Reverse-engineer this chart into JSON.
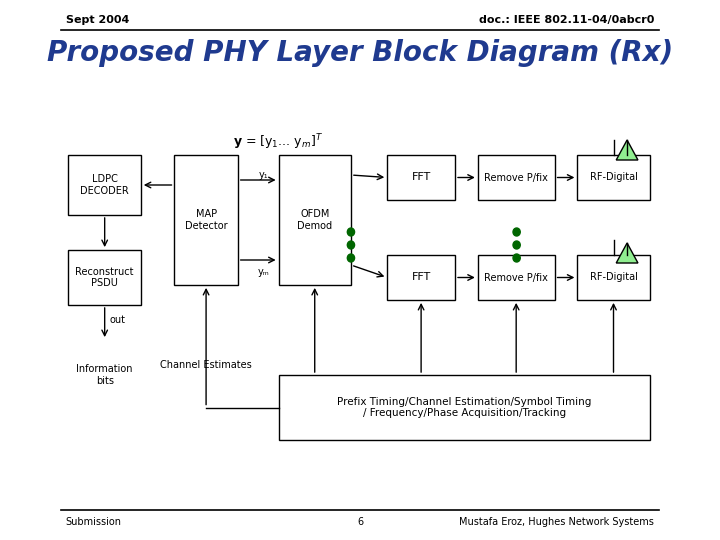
{
  "title": "Proposed PHY Layer Block Diagram (Rx)",
  "header_left": "Sept 2004",
  "header_right": "doc.: IEEE 802.11-04/0abcr0",
  "footer_left": "Submission",
  "footer_center": "6",
  "footer_right": "Mustafa Eroz, Hughes Network Systems",
  "title_color": "#1F3A8F",
  "header_color": "#000000",
  "box_edge_color": "#000000",
  "arrow_color": "#000000",
  "dot_color": "#006600",
  "antenna_color": "#90EE90",
  "background": "#FFFFFF"
}
